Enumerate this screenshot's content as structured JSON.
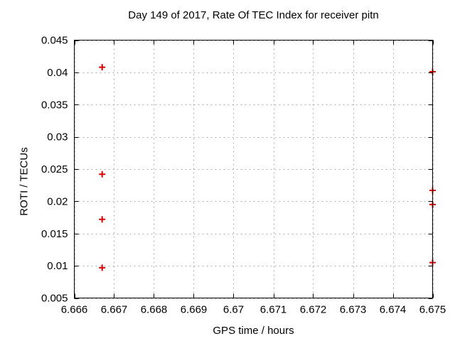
{
  "chart_data": {
    "type": "scatter",
    "title": "Day 149 of 2017, Rate Of TEC Index for receiver pitn",
    "xlabel": "GPS time / hours",
    "ylabel": "ROTI / TECUs",
    "xlim": [
      6.666,
      6.675
    ],
    "ylim": [
      0.005,
      0.045
    ],
    "grid": true,
    "legend": "none",
    "x_ticks": {
      "values": [
        6.666,
        6.667,
        6.668,
        6.669,
        6.67,
        6.671,
        6.672,
        6.673,
        6.674,
        6.675
      ],
      "labels": [
        "6.666",
        "6.667",
        "6.668",
        "6.669",
        "6.67",
        "6.671",
        "6.672",
        "6.673",
        "6.674",
        "6.675"
      ]
    },
    "y_ticks": {
      "values": [
        0.005,
        0.01,
        0.015,
        0.02,
        0.025,
        0.03,
        0.035,
        0.04,
        0.045
      ],
      "labels": [
        "0.005",
        "0.01",
        "0.015",
        "0.02",
        "0.025",
        "0.03",
        "0.035",
        "0.04",
        "0.045"
      ]
    },
    "series": [
      {
        "name": "ROTI",
        "marker": "plus",
        "color": "#dd0000",
        "points": [
          [
            6.6667,
            0.0408
          ],
          [
            6.6667,
            0.0242
          ],
          [
            6.6667,
            0.0172
          ],
          [
            6.6667,
            0.0097
          ],
          [
            6.675,
            0.0401
          ],
          [
            6.675,
            0.0217
          ],
          [
            6.675,
            0.0195
          ],
          [
            6.675,
            0.0105
          ]
        ]
      }
    ],
    "colors": {
      "background": "#ffffff",
      "frame": "#000000",
      "grid": "#b0b0b0",
      "text": "#000000"
    }
  }
}
